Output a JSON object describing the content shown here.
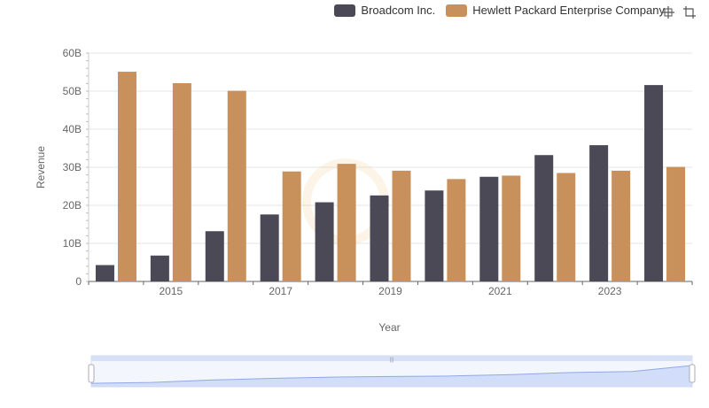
{
  "chart_data": {
    "type": "bar",
    "xlabel": "Year",
    "ylabel": "Revenue",
    "x": [
      2014,
      2015,
      2016,
      2017,
      2018,
      2019,
      2020,
      2021,
      2022,
      2023,
      2024
    ],
    "x_tick_labels": [
      "2015",
      "2017",
      "2019",
      "2021",
      "2023"
    ],
    "x_tick_values": [
      2015,
      2017,
      2019,
      2021,
      2023
    ],
    "y_tick_labels": [
      "0",
      "10B",
      "20B",
      "30B",
      "40B",
      "50B",
      "60B"
    ],
    "y_tick_values": [
      0,
      10,
      20,
      30,
      40,
      50,
      60
    ],
    "ylim": [
      0,
      60
    ],
    "y_unit": "billions",
    "grid": true,
    "legend_position": "top-right",
    "series": [
      {
        "name": "Broadcom Inc.",
        "color": "#4a4955",
        "values": [
          4.3,
          6.8,
          13.2,
          17.6,
          20.8,
          22.6,
          23.9,
          27.5,
          33.2,
          35.8,
          51.6
        ]
      },
      {
        "name": "Hewlett Packard Enterprise Company",
        "color": "#c8905b",
        "values": [
          55.1,
          52.1,
          50.1,
          28.9,
          30.9,
          29.1,
          26.9,
          27.8,
          28.5,
          29.1,
          30.1
        ]
      }
    ]
  },
  "toolbar": {
    "zoom_icon": "crosshair-zoom-icon",
    "reset_icon": "zoom-reset-icon"
  },
  "slider": {
    "fill_color": "#dce6fb",
    "range_start": 0,
    "range_end": 1
  }
}
